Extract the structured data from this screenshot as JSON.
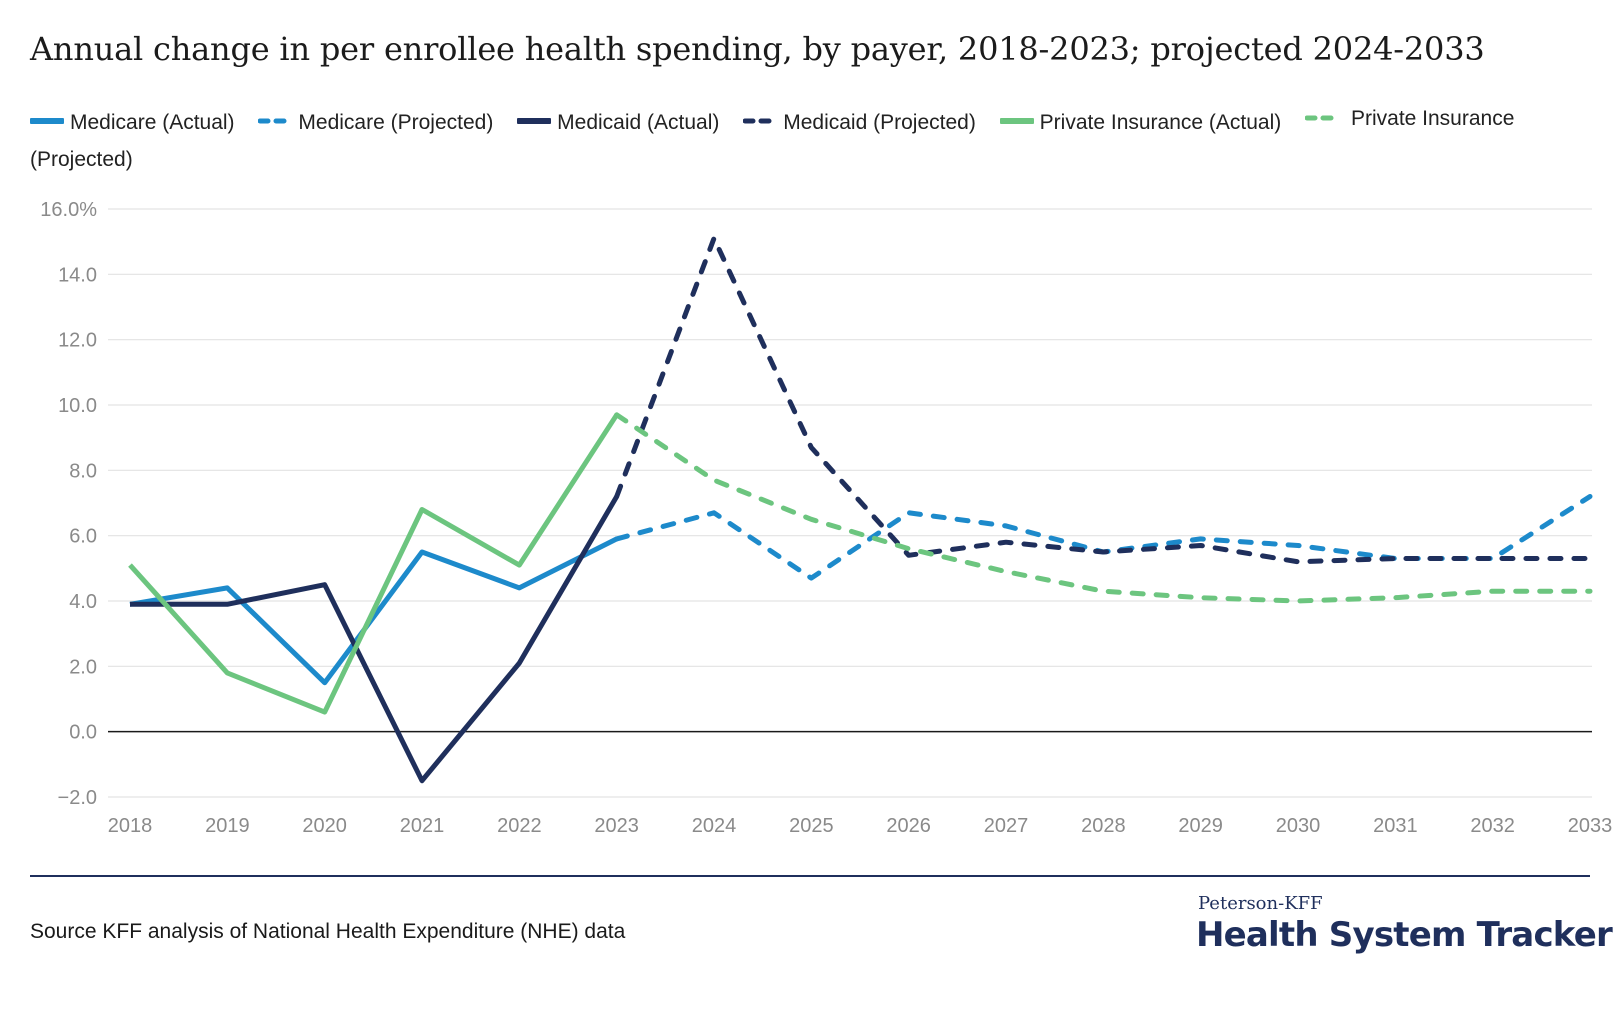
{
  "title": "Annual change in per enrollee health spending, by payer, 2018-2023; projected 2024-2033",
  "source": "Source KFF analysis of National Health Expenditure (NHE) data",
  "brand": {
    "small": "Peterson-KFF",
    "big": "Health System Tracker"
  },
  "colors": {
    "medicare": "#1d8acb",
    "medicaid": "#1f2f5c",
    "private": "#6cc57f",
    "grid": "#e3e3e3",
    "zero": "#1a1a1a",
    "rule": "#1f2f5c"
  },
  "chart_data": {
    "type": "line",
    "title": "Annual change in per enrollee health spending, by payer, 2018-2023; projected 2024-2033",
    "xlabel": "",
    "ylabel": "",
    "x": [
      2018,
      2019,
      2020,
      2021,
      2022,
      2023,
      2024,
      2025,
      2026,
      2027,
      2028,
      2029,
      2030,
      2031,
      2032,
      2033
    ],
    "ylim": [
      -2,
      16
    ],
    "yticks": [
      -2,
      0,
      2,
      4,
      6,
      8,
      10,
      12,
      14,
      16
    ],
    "ytick_labels": [
      "−2.0",
      "0.0",
      "2.0",
      "4.0",
      "6.0",
      "8.0",
      "10.0",
      "12.0",
      "14.0",
      "16.0%"
    ],
    "grid": true,
    "legend_position": "top",
    "series": [
      {
        "name": "Medicare (Actual)",
        "color": "#1d8acb",
        "dashed": false,
        "x": [
          2018,
          2019,
          2020,
          2021,
          2022,
          2023
        ],
        "values": [
          3.9,
          4.4,
          1.5,
          5.5,
          4.4,
          5.9
        ]
      },
      {
        "name": "Medicare (Projected)",
        "color": "#1d8acb",
        "dashed": true,
        "x": [
          2023,
          2024,
          2025,
          2026,
          2027,
          2028,
          2029,
          2030,
          2031,
          2032,
          2033
        ],
        "values": [
          5.9,
          6.7,
          4.7,
          6.7,
          6.3,
          5.5,
          5.9,
          5.7,
          5.3,
          5.3,
          7.2
        ]
      },
      {
        "name": "Medicaid (Actual)",
        "color": "#1f2f5c",
        "dashed": false,
        "x": [
          2018,
          2019,
          2020,
          2021,
          2022,
          2023
        ],
        "values": [
          3.9,
          3.9,
          4.5,
          -1.5,
          2.1,
          7.2
        ]
      },
      {
        "name": "Medicaid (Projected)",
        "color": "#1f2f5c",
        "dashed": true,
        "x": [
          2023,
          2024,
          2025,
          2026,
          2027,
          2028,
          2029,
          2030,
          2031,
          2032,
          2033
        ],
        "values": [
          7.2,
          15.1,
          8.7,
          5.4,
          5.8,
          5.5,
          5.7,
          5.2,
          5.3,
          5.3,
          5.3
        ]
      },
      {
        "name": "Private Insurance (Actual)",
        "color": "#6cc57f",
        "dashed": false,
        "x": [
          2018,
          2019,
          2020,
          2021,
          2022,
          2023
        ],
        "values": [
          5.1,
          1.8,
          0.6,
          6.8,
          5.1,
          9.7
        ]
      },
      {
        "name": "Private Insurance (Projected)",
        "color": "#6cc57f",
        "dashed": true,
        "x": [
          2023,
          2024,
          2025,
          2026,
          2027,
          2028,
          2029,
          2030,
          2031,
          2032,
          2033
        ],
        "values": [
          9.7,
          7.7,
          6.5,
          5.6,
          4.9,
          4.3,
          4.1,
          4.0,
          4.1,
          4.3,
          4.3
        ]
      }
    ]
  }
}
